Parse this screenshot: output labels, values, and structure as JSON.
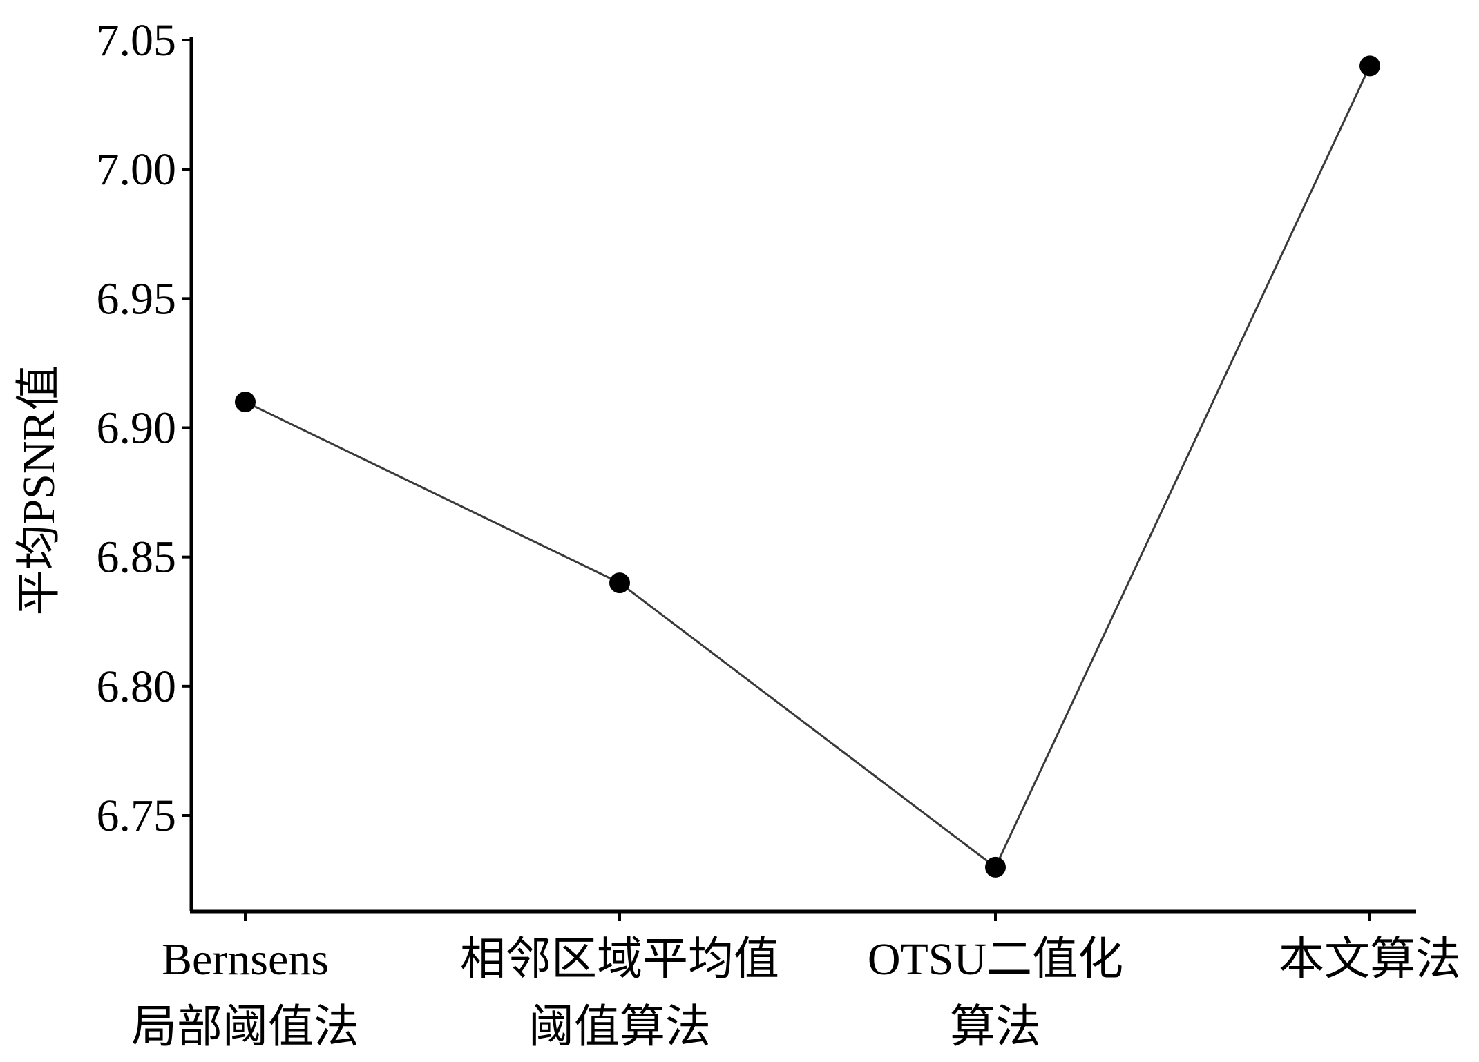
{
  "chart_data": {
    "type": "line",
    "ylabel": "平均PSNR值",
    "xlabel": "",
    "title": "",
    "categories": [
      [
        "Bernsens",
        "局部阈值法"
      ],
      [
        "相邻区域平均值",
        "阈值算法"
      ],
      [
        "OTSU二值化",
        "算法"
      ],
      [
        "本文算法"
      ]
    ],
    "series": [
      {
        "values": [
          6.91,
          6.84,
          6.73,
          7.04
        ]
      }
    ],
    "ylim": [
      6.71,
      7.05
    ],
    "yticks": [
      "6.75",
      "6.80",
      "6.85",
      "6.90",
      "6.95",
      "7.00",
      "7.05"
    ],
    "grid": false,
    "colors": {
      "line": "#3a3a3a",
      "marker": "#000000",
      "axis": "#000000"
    }
  }
}
